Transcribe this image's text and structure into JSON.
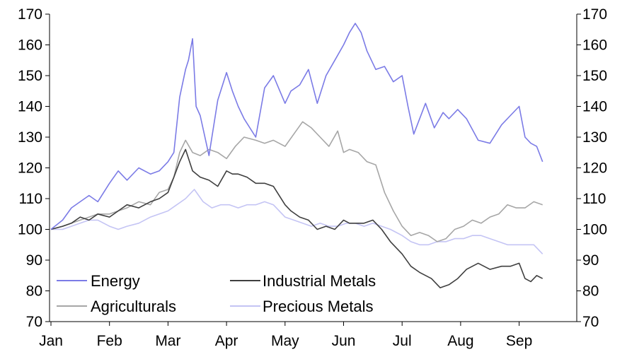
{
  "chart_data": {
    "type": "line",
    "title": "",
    "xlabel": "",
    "ylabel": "",
    "ylim": [
      70,
      170
    ],
    "yticks": [
      70,
      80,
      90,
      100,
      110,
      120,
      130,
      140,
      150,
      160,
      170
    ],
    "secondary_ylim": [
      70,
      170
    ],
    "month_ticks": [
      "Jan",
      "Feb",
      "Mar",
      "Apr",
      "May",
      "Jun",
      "Jul",
      "Aug",
      "Sep"
    ],
    "x_unit": "month index (0 = Jan)",
    "grid": false,
    "legend": {
      "placement": "bottom-left",
      "columns": 2
    },
    "series": [
      {
        "name": "Energy",
        "color": "#7b7be6",
        "x": [
          0,
          0.2,
          0.35,
          0.5,
          0.65,
          0.8,
          1.0,
          1.15,
          1.3,
          1.5,
          1.7,
          1.85,
          2.0,
          2.1,
          2.2,
          2.3,
          2.35,
          2.42,
          2.48,
          2.55,
          2.7,
          2.85,
          3.0,
          3.1,
          3.2,
          3.3,
          3.5,
          3.65,
          3.8,
          4.0,
          4.1,
          4.25,
          4.4,
          4.55,
          4.7,
          4.85,
          5.0,
          5.1,
          5.2,
          5.3,
          5.4,
          5.55,
          5.7,
          5.85,
          6.0,
          6.1,
          6.2,
          6.4,
          6.55,
          6.7,
          6.8,
          6.95,
          7.1,
          7.3,
          7.5,
          7.7,
          7.85,
          8.0,
          8.1,
          8.2,
          8.3,
          8.4
        ],
        "values": [
          100,
          103,
          107,
          109,
          111,
          109,
          115,
          119,
          116,
          120,
          118,
          119,
          122,
          125,
          143,
          152,
          155,
          162,
          140,
          137,
          124,
          142,
          151,
          145,
          140,
          136,
          130,
          146,
          150,
          141,
          145,
          147,
          152,
          141,
          150,
          155,
          160,
          164,
          167,
          164,
          158,
          152,
          153,
          148,
          150,
          140,
          131,
          141,
          133,
          138,
          136,
          139,
          136,
          129,
          128,
          134,
          137,
          140,
          130,
          128,
          127,
          122
        ]
      },
      {
        "name": "Industrial Metals",
        "color": "#3f3f3f",
        "x": [
          0,
          0.2,
          0.35,
          0.5,
          0.65,
          0.8,
          1.0,
          1.15,
          1.3,
          1.5,
          1.7,
          1.85,
          2.0,
          2.1,
          2.2,
          2.3,
          2.42,
          2.55,
          2.7,
          2.85,
          3.0,
          3.1,
          3.2,
          3.35,
          3.5,
          3.65,
          3.8,
          4.0,
          4.1,
          4.25,
          4.4,
          4.55,
          4.7,
          4.85,
          5.0,
          5.1,
          5.2,
          5.35,
          5.5,
          5.65,
          5.8,
          6.0,
          6.15,
          6.3,
          6.5,
          6.65,
          6.8,
          6.95,
          7.1,
          7.3,
          7.5,
          7.7,
          7.85,
          8.0,
          8.1,
          8.2,
          8.3,
          8.4
        ],
        "values": [
          100,
          101,
          102,
          104,
          103,
          105,
          104,
          106,
          108,
          107,
          109,
          110,
          112,
          117,
          122,
          126,
          119,
          117,
          116,
          114,
          119,
          118,
          118,
          117,
          115,
          115,
          114,
          108,
          106,
          104,
          103,
          100,
          101,
          100,
          103,
          102,
          102,
          102,
          103,
          100,
          96,
          92,
          88,
          86,
          84,
          81,
          82,
          84,
          87,
          89,
          87,
          88,
          88,
          89,
          84,
          83,
          85,
          84
        ]
      },
      {
        "name": "Agriculturals",
        "color": "#a6a6a6",
        "x": [
          0,
          0.2,
          0.35,
          0.5,
          0.65,
          0.8,
          1.0,
          1.15,
          1.3,
          1.5,
          1.7,
          1.85,
          2.0,
          2.1,
          2.2,
          2.3,
          2.42,
          2.55,
          2.7,
          2.85,
          3.0,
          3.15,
          3.3,
          3.5,
          3.65,
          3.8,
          4.0,
          4.15,
          4.3,
          4.45,
          4.6,
          4.75,
          4.9,
          5.0,
          5.1,
          5.25,
          5.4,
          5.55,
          5.7,
          5.85,
          6.0,
          6.15,
          6.3,
          6.45,
          6.6,
          6.75,
          6.9,
          7.05,
          7.2,
          7.35,
          7.5,
          7.65,
          7.8,
          7.95,
          8.1,
          8.25,
          8.4
        ],
        "values": [
          100,
          101,
          102,
          103,
          104,
          105,
          105,
          106,
          107,
          109,
          108,
          112,
          113,
          117,
          125,
          129,
          125,
          124,
          126,
          125,
          123,
          127,
          130,
          129,
          128,
          129,
          127,
          131,
          135,
          133,
          130,
          127,
          132,
          125,
          126,
          125,
          122,
          121,
          112,
          106,
          101,
          98,
          99,
          98,
          96,
          97,
          100,
          101,
          103,
          102,
          104,
          105,
          108,
          107,
          107,
          109,
          108
        ]
      },
      {
        "name": "Precious Metals",
        "color": "#c4c4f4",
        "x": [
          0,
          0.2,
          0.35,
          0.5,
          0.65,
          0.8,
          1.0,
          1.15,
          1.3,
          1.5,
          1.7,
          1.85,
          2.0,
          2.15,
          2.3,
          2.45,
          2.6,
          2.75,
          2.9,
          3.05,
          3.2,
          3.35,
          3.5,
          3.65,
          3.8,
          4.0,
          4.15,
          4.3,
          4.45,
          4.6,
          4.75,
          4.9,
          5.05,
          5.2,
          5.35,
          5.5,
          5.65,
          5.8,
          6.0,
          6.15,
          6.3,
          6.45,
          6.6,
          6.75,
          6.9,
          7.05,
          7.2,
          7.35,
          7.5,
          7.65,
          7.8,
          7.95,
          8.1,
          8.25,
          8.4
        ],
        "values": [
          100,
          100,
          101,
          102,
          103,
          103,
          101,
          100,
          101,
          102,
          104,
          105,
          106,
          108,
          110,
          113,
          109,
          107,
          108,
          108,
          107,
          108,
          108,
          109,
          108,
          104,
          103,
          102,
          101,
          102,
          101,
          101,
          102,
          102,
          101,
          102,
          101,
          100,
          98,
          96,
          95,
          95,
          96,
          96,
          97,
          97,
          98,
          98,
          97,
          96,
          95,
          95,
          95,
          95,
          92
        ]
      }
    ]
  }
}
